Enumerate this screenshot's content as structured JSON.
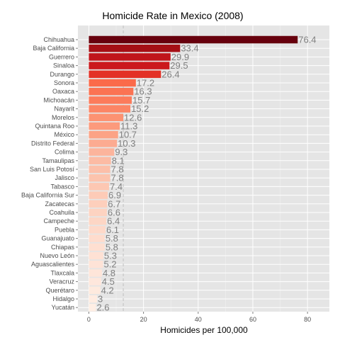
{
  "chart_data": {
    "type": "bar",
    "orientation": "horizontal",
    "title": "Homicide Rate in Mexico (2008)",
    "xlabel": "Homicides per 100,000",
    "ylabel": "",
    "xlim": [
      -4,
      88
    ],
    "xticks": [
      "0",
      "20",
      "40",
      "60",
      "80"
    ],
    "grid": true,
    "reference_line": 12.6,
    "categories": [
      "Chihuahua",
      "Baja California",
      "Guerrero",
      "Sinaloa",
      "Durango",
      "Sonora",
      "Oaxaca",
      "Michoacán",
      "Nayarit",
      "Morelos",
      "Quintana Roo",
      "México",
      "Distrito Federal",
      "Colima",
      "Tamaulipas",
      "San Luis Potosí",
      "Jalisco",
      "Tabasco",
      "Baja California Sur",
      "Zacatecas",
      "Coahuila",
      "Campeche",
      "Puebla",
      "Guanajuato",
      "Chiapas",
      "Nuevo León",
      "Aguascalientes",
      "Tlaxcala",
      "Veracruz",
      "Querétaro",
      "Hidalgo",
      "Yucatán"
    ],
    "values": [
      76.4,
      33.4,
      29.9,
      29.5,
      26.4,
      17.2,
      16.3,
      15.7,
      15.2,
      12.6,
      11.3,
      10.7,
      10.3,
      9.3,
      8.1,
      7.8,
      7.8,
      7.4,
      6.9,
      6.7,
      6.6,
      6.4,
      6.1,
      5.8,
      5.8,
      5.3,
      5.2,
      4.8,
      4.5,
      4.2,
      3,
      2.6
    ],
    "value_labels": [
      "76.4",
      "33.4",
      "29.9",
      "29.5",
      "26.4",
      "17.2",
      "16.3",
      "15.7",
      "15.2",
      "12.6",
      "11.3",
      "10.7",
      "10.3",
      "9.3",
      "8.1",
      "7.8",
      "7.8",
      "7.4",
      "6.9",
      "6.7",
      "6.6",
      "6.4",
      "6.1",
      "5.8",
      "5.8",
      "5.3",
      "5.2",
      "4.8",
      "4.5",
      "4.2",
      "3",
      "2.6"
    ],
    "bar_colors": [
      "#67000d",
      "#a50f15",
      "#c0151b",
      "#cb181d",
      "#e33126",
      "#fb6a4a",
      "#fb7353",
      "#fc7b5b",
      "#fc8565",
      "#fc9272",
      "#fc9a7c",
      "#fca386",
      "#fcab91",
      "#fcb49c",
      "#fcbba4",
      "#fcbfa9",
      "#fcc3ad",
      "#fdc7b2",
      "#fdcbb7",
      "#fdcfbc",
      "#fdd3c1",
      "#fdd6c5",
      "#fed9c9",
      "#fedccd",
      "#fedfd1",
      "#fee1d4",
      "#fee3d7",
      "#fee5d9",
      "#fee7dc",
      "#feeade",
      "#ffece1",
      "#ffeee4"
    ],
    "panel_background": "#e5e5e5",
    "grid_color": "#ffffff",
    "reference_line_color": "#bfbfbf"
  }
}
